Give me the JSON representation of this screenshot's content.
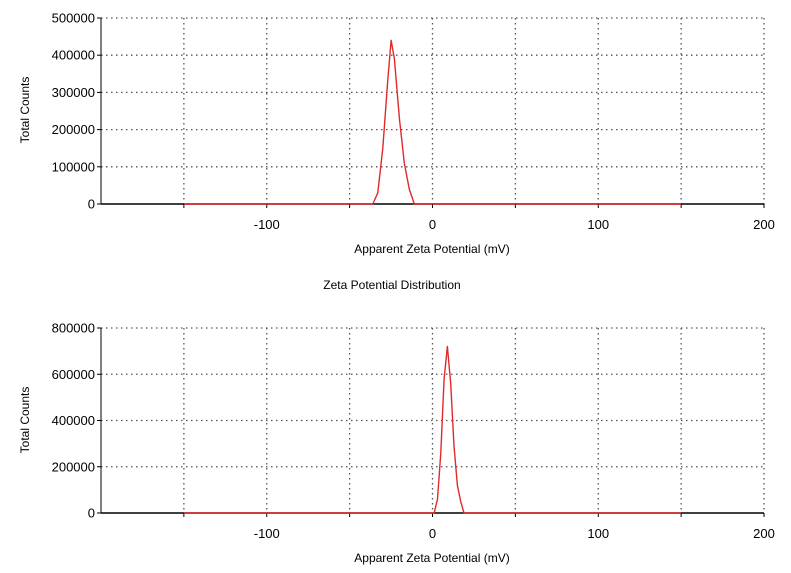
{
  "colors": {
    "series": "#e02a2a",
    "axis": "#000000",
    "grid": "#555555"
  },
  "chart_data": [
    {
      "type": "line",
      "title": "",
      "xlabel": "Apparent Zeta Potential (mV)",
      "ylabel": "Total Counts",
      "xlim": [
        -200,
        200
      ],
      "ylim": [
        0,
        500000
      ],
      "xticks": [
        -100,
        0,
        100,
        200
      ],
      "xtick_labels": [
        "-100",
        "0",
        "100",
        "200"
      ],
      "yticks": [
        0,
        100000,
        200000,
        300000,
        400000,
        500000
      ],
      "ytick_labels": [
        "0",
        "100000",
        "200000",
        "300000",
        "400000",
        "500000"
      ],
      "grid": true,
      "series": [
        {
          "x": [
            -150,
            -36,
            -33,
            -30,
            -27,
            -25,
            -23,
            -20,
            -17,
            -14,
            -11,
            150
          ],
          "y": [
            0,
            0,
            30000,
            150000,
            330000,
            440000,
            390000,
            230000,
            110000,
            40000,
            0,
            0
          ]
        }
      ]
    },
    {
      "type": "line",
      "title": "Zeta Potential Distribution",
      "xlabel": "Apparent Zeta Potential (mV)",
      "ylabel": "Total Counts",
      "xlim": [
        -200,
        200
      ],
      "ylim": [
        0,
        800000
      ],
      "xticks": [
        -100,
        0,
        100,
        200
      ],
      "xtick_labels": [
        "-100",
        "0",
        "100",
        "200"
      ],
      "yticks": [
        0,
        200000,
        400000,
        600000,
        800000
      ],
      "ytick_labels": [
        "0",
        "200000",
        "400000",
        "600000",
        "800000"
      ],
      "grid": true,
      "series": [
        {
          "x": [
            -150,
            1,
            3,
            5,
            7,
            9,
            11,
            13,
            15,
            17,
            19,
            150
          ],
          "y": [
            0,
            0,
            60000,
            260000,
            580000,
            720000,
            560000,
            290000,
            120000,
            50000,
            0,
            0
          ]
        }
      ]
    }
  ]
}
